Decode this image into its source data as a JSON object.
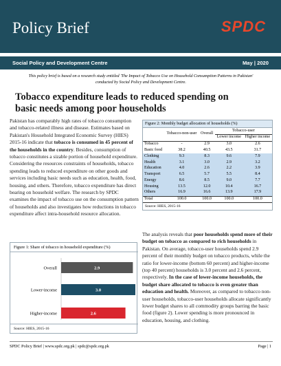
{
  "header": {
    "title": "Policy Brief",
    "logo": "SPDC",
    "organization": "Social Policy and Development Centre",
    "date": "May | 2020"
  },
  "note": "This policy brief is based on a research study entitled 'The Impact of Tobacco Use on Household Consumption Patterns in Pakistan' conducted by Social Policy and Development Centre.",
  "heading": "Tobacco expenditure leads to reduced spending on basic needs among poor households",
  "left_text": [
    {
      "text": "Pakistan has comparably high rates of tobacco consumption and tobacco-related illness and disease. Estimates based on Pakistan's Household Integrated Economic Survey (HIES) 2015-16 indicate that "
    },
    {
      "text": "tobacco is consumed in 45 percent of the households in the country",
      "bold": true
    },
    {
      "text": ". Besides, consumption of tobacco constitutes a sizable portion of household expenditure. Considering the resources constraints of households, tobacco spending leads to reduced expenditure on other goods and services including basic needs such as education, health, food, housing, and others. Therefore, tobacco expenditure has direct bearing on household welfare. The research by SPDC examines the impact of tobacco use on the consumption pattern of households and also investigates how reductions in tobacco expenditure affect intra-household resource allocation."
    }
  ],
  "right_text": [
    {
      "text": "The analysis reveals that "
    },
    {
      "text": "poor households spend more of their budget on tobacco as compared to rich households",
      "bold": true
    },
    {
      "text": " in Pakistan. On average, tobacco-user households spend 2.9 percent of their monthly budget on tobacco products, while the ratio for lower-income (bottom 60 percent) and higher-income (top 40 percent) households is 3.0 percent and 2.6 percent, respectively. "
    },
    {
      "text": "In the case of lower-income households, the budget share allocated to tobacco is even greater than education and health.",
      "bold": true
    },
    {
      "text": " Moreover, as compared to tobacco non-user households, tobacco-user households allocate significantly lower budget shares to all commodity groups barring the basic food (figure 2). Lower spending is more pronounced in education, housing, and clothing."
    }
  ],
  "chart_data": {
    "type": "bar",
    "title": "Figure 1: Share of tobacco in household expenditure (%)",
    "categories": [
      "Overall",
      "Lower-income",
      "Higher-income"
    ],
    "values": [
      2.9,
      3,
      2.6
    ],
    "value_labels": [
      "2.9",
      "3.0",
      "2.6"
    ],
    "colors": [
      "#555555",
      "#1d4e66",
      "#d9262e"
    ],
    "source": "Source: HIES, 2015-16"
  },
  "table": {
    "title": "Figure 2: Monthly budget allocation of households (%)",
    "group": "Tobacco-user",
    "columns": [
      "Tobacco-non-user",
      "Overall",
      "Lower income",
      "Higher income"
    ],
    "rows": [
      [
        "Tobacco",
        "-",
        "2.9",
        "3.0",
        "2.6"
      ],
      [
        "Basic food",
        "38.2",
        "40.5",
        "43.5",
        "31.7"
      ],
      [
        "Clothing",
        "9.3",
        "8.3",
        "9.6",
        "7.9"
      ],
      [
        "Health",
        "3.1",
        "3.0",
        "2.9",
        "3.2"
      ],
      [
        "Education",
        "4.0",
        "2.6",
        "2.2",
        "3.9"
      ],
      [
        "Transport",
        "6.5",
        "5.7",
        "5.5",
        "8.4"
      ],
      [
        "Energy",
        "8.6",
        "8.5",
        "9.0",
        "7.7"
      ],
      [
        "Housing",
        "13.5",
        "12.0",
        "10.4",
        "16.7"
      ],
      [
        "Others",
        "16.9",
        "16.6",
        "13.9",
        "17.9"
      ],
      [
        "Total",
        "100.0",
        "100.0",
        "100.0",
        "100.0"
      ]
    ],
    "source": "Source: HIES, 2015-16"
  },
  "footer": {
    "left": "SPDC Policy Brief | www.spdc.org.pk | spdc@spdc.org.pk",
    "right": "Page | 1"
  }
}
